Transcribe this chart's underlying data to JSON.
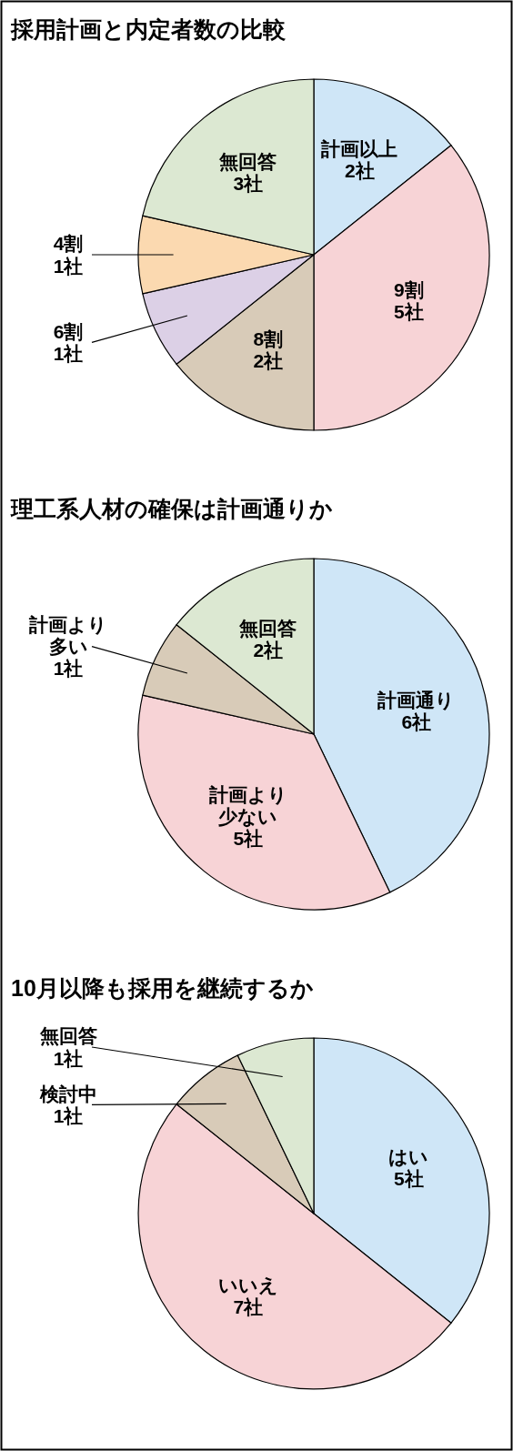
{
  "chart_data": [
    {
      "type": "pie",
      "title": "採用計画と内定者数の比較",
      "categories": [
        "計画以上",
        "9割",
        "8割",
        "6割",
        "4割",
        "無回答"
      ],
      "values": [
        2,
        5,
        2,
        1,
        1,
        3
      ],
      "value_labels": [
        "2社",
        "5社",
        "2社",
        "1社",
        "1社",
        "3社"
      ],
      "colors": [
        "#cfe6f7",
        "#f7d3d6",
        "#d8cbb8",
        "#dcd0e6",
        "#fbd9b0",
        "#dce8d2"
      ]
    },
    {
      "type": "pie",
      "title": "理工系人材の確保は計画通りか",
      "categories": [
        "計画通り",
        "計画より少ない",
        "計画より多い",
        "無回答"
      ],
      "values": [
        6,
        5,
        1,
        2
      ],
      "value_labels": [
        "6社",
        "5社",
        "1社",
        "2社"
      ],
      "colors": [
        "#cfe6f7",
        "#f7d3d6",
        "#d8cbb8",
        "#dce8d2"
      ]
    },
    {
      "type": "pie",
      "title": "10月以降も採用を継続するか",
      "categories": [
        "はい",
        "いいえ",
        "検討中",
        "無回答"
      ],
      "values": [
        5,
        7,
        1,
        1
      ],
      "value_labels": [
        "5社",
        "7社",
        "1社",
        "1社"
      ],
      "colors": [
        "#cfe6f7",
        "#f7d3d6",
        "#d8cbb8",
        "#dce8d2"
      ]
    }
  ]
}
